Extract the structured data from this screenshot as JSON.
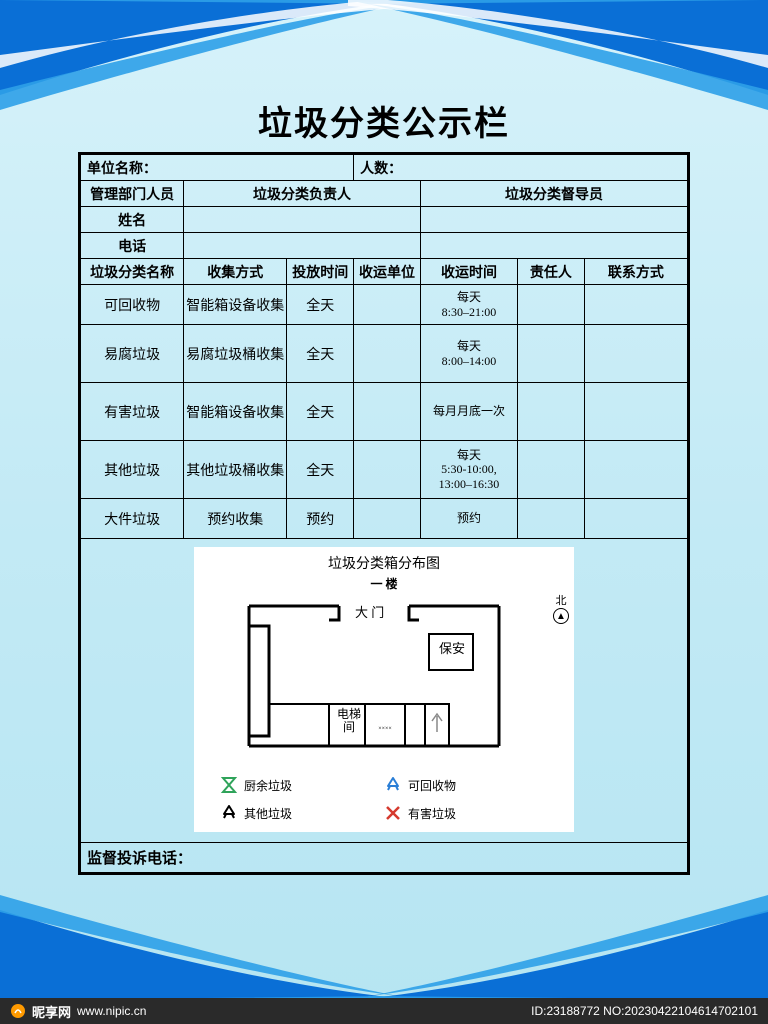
{
  "title": "垃圾分类公示栏",
  "colors": {
    "bg_top": "#d6f2fa",
    "bg_bottom": "#b6e5f2",
    "swoosh_dark": "#0a6fd6",
    "swoosh_light": "#2ea0e8",
    "border": "#000000",
    "map_bg": "#ffffff",
    "legend_green": "#2fa35a",
    "legend_blue": "#2a7ed6",
    "legend_black": "#000000",
    "legend_red": "#d53a2e"
  },
  "info_row": {
    "unit_label": "单位名称：",
    "count_label": "人数："
  },
  "role_headers": [
    "管理部门人员",
    "垃圾分类负责人",
    "垃圾分类督导员"
  ],
  "role_fields": [
    "姓名",
    "电话"
  ],
  "table": {
    "columns": [
      "垃圾分类名称",
      "收集方式",
      "投放时间",
      "收运单位",
      "收运时间",
      "责任人",
      "联系方式"
    ],
    "col_widths_pct": [
      17,
      17,
      11,
      11,
      16,
      11,
      17
    ],
    "rows": [
      {
        "name": "可回收物",
        "method": "智能箱设备收集",
        "put_time": "全天",
        "unit": "",
        "ship_time": "每天\n8:30–21:00",
        "person": "",
        "contact": ""
      },
      {
        "name": "易腐垃圾",
        "method": "易腐垃圾桶收集",
        "put_time": "全天",
        "unit": "",
        "ship_time": "每天\n8:00–14:00",
        "person": "",
        "contact": ""
      },
      {
        "name": "有害垃圾",
        "method": "智能箱设备收集",
        "put_time": "全天",
        "unit": "",
        "ship_time": "每月月底一次",
        "person": "",
        "contact": ""
      },
      {
        "name": "其他垃圾",
        "method": "其他垃圾桶收集",
        "put_time": "全天",
        "unit": "",
        "ship_time": "每天\n5:30-10:00,\n13:00–16:30",
        "person": "",
        "contact": ""
      },
      {
        "name": "大件垃圾",
        "method": "预约收集",
        "put_time": "预约",
        "unit": "",
        "ship_time": "预约",
        "person": "",
        "contact": ""
      }
    ]
  },
  "map": {
    "title": "垃圾分类箱分布图",
    "floor": "一 楼",
    "north_label": "北",
    "labels": {
      "gate": "大 门",
      "guard": "保安",
      "elevator": "电梯间"
    },
    "legend": [
      {
        "icon": "hourglass",
        "color": "#2fa35a",
        "label": "厨余垃圾"
      },
      {
        "icon": "recycle",
        "color": "#2a7ed6",
        "label": "可回收物"
      },
      {
        "icon": "recycle",
        "color": "#000000",
        "label": "其他垃圾"
      },
      {
        "icon": "cross",
        "color": "#d53a2e",
        "label": "有害垃圾"
      }
    ]
  },
  "complaint_label": "监督投诉电话：",
  "watermark": {
    "brand": "昵享网",
    "url": "www.nipic.cn",
    "id": "ID:23188772 NO:20230422104614702101"
  }
}
